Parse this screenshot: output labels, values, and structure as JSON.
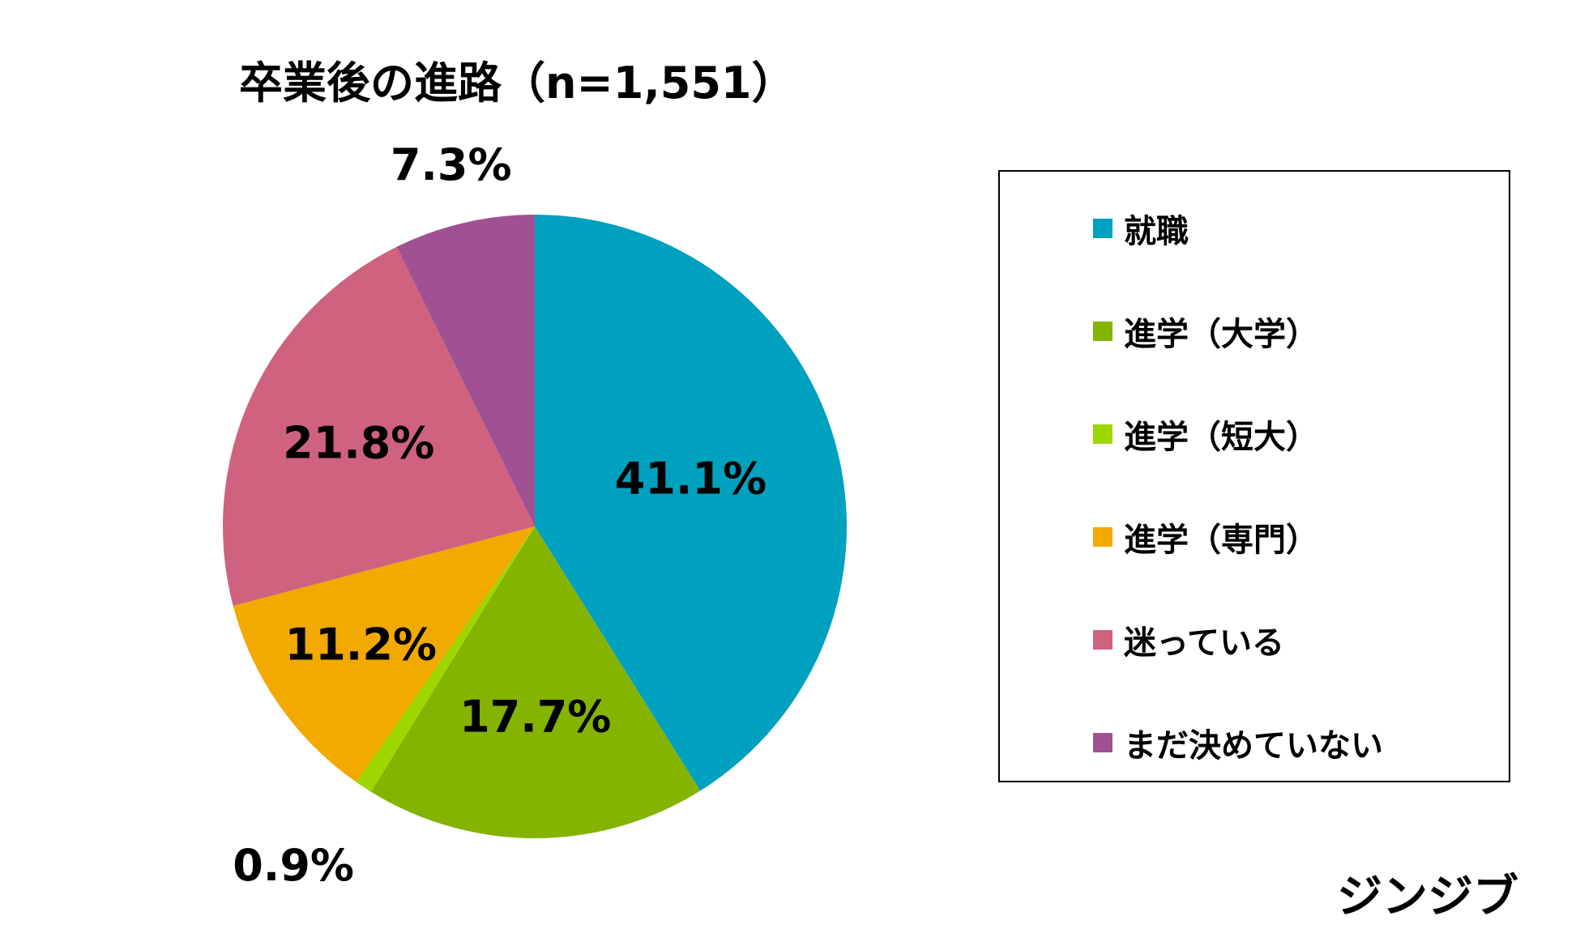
{
  "chart_data": {
    "type": "pie",
    "title": "卒業後の進路（n=1,551）",
    "categories": [
      "就職",
      "進学（大学）",
      "進学（短大）",
      "進学（専門）",
      "迷っている",
      "まだ決めていない"
    ],
    "values": [
      41.1,
      17.7,
      0.9,
      11.2,
      21.8,
      7.3
    ],
    "value_labels": [
      "41.1%",
      "17.7%",
      "0.9%",
      "11.2%",
      "21.8%",
      "7.3%"
    ],
    "colors": [
      "#00a0bf",
      "#84b300",
      "#9ed600",
      "#f2a900",
      "#ce627f",
      "#a05191"
    ],
    "start": "12 o'clock",
    "direction": "clockwise",
    "legend_placement": "right"
  },
  "brand": {
    "logo_text": "ジンジブ"
  }
}
